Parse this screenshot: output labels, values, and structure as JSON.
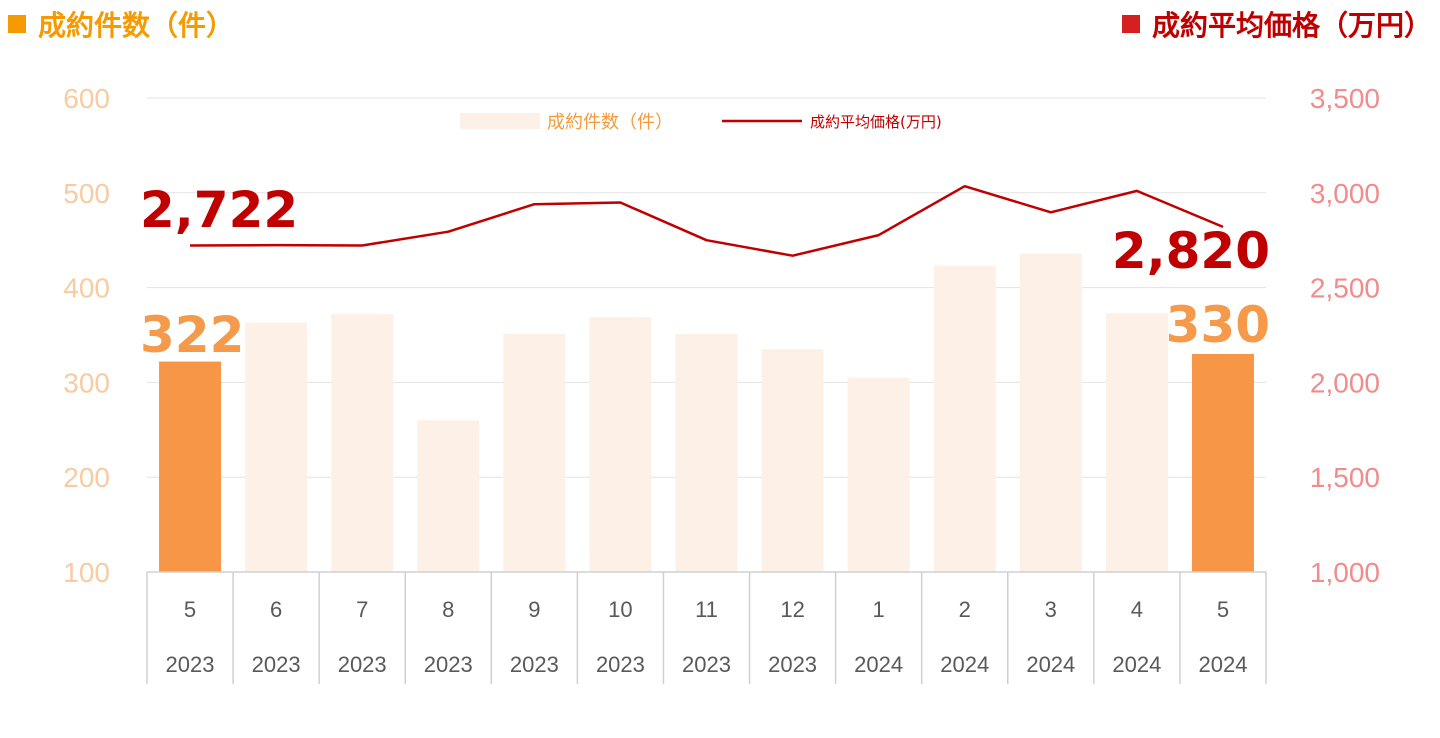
{
  "header": {
    "left_title": "成約件数（件）",
    "right_title": "成約平均価格（万円）",
    "left_color": "#F59A00",
    "right_color": "#D62020"
  },
  "chart_data": {
    "type": "bar+line",
    "categories": [
      {
        "month": "5",
        "year": "2023"
      },
      {
        "month": "6",
        "year": "2023"
      },
      {
        "month": "7",
        "year": "2023"
      },
      {
        "month": "8",
        "year": "2023"
      },
      {
        "month": "9",
        "year": "2023"
      },
      {
        "month": "10",
        "year": "2023"
      },
      {
        "month": "11",
        "year": "2023"
      },
      {
        "month": "12",
        "year": "2023"
      },
      {
        "month": "1",
        "year": "2024"
      },
      {
        "month": "2",
        "year": "2024"
      },
      {
        "month": "3",
        "year": "2024"
      },
      {
        "month": "4",
        "year": "2024"
      },
      {
        "month": "5",
        "year": "2024"
      }
    ],
    "series": [
      {
        "name": "成約件数(件)",
        "axis": "left",
        "kind": "bar",
        "values": [
          322,
          363,
          372,
          260,
          351,
          369,
          351,
          335,
          305,
          423,
          436,
          373,
          330
        ],
        "highlighted_indices": [
          0,
          12
        ],
        "color": "#F79646",
        "faded_color": "#FCF0E7"
      },
      {
        "name": "成約平均価格(万円)",
        "axis": "right",
        "kind": "line",
        "values": [
          2722,
          2724,
          2722,
          2795,
          2940,
          2949,
          2750,
          2668,
          2777,
          3035,
          2897,
          3010,
          2820
        ],
        "color": "#C00000"
      }
    ],
    "left_axis": {
      "ylim": [
        100,
        600
      ],
      "ticks": [
        "100",
        "200",
        "300",
        "400",
        "500",
        "600"
      ]
    },
    "right_axis": {
      "ylim": [
        1000,
        3500
      ],
      "ticks": [
        "1,000",
        "1,500",
        "2,000",
        "2,500",
        "3,000",
        "3,500"
      ]
    },
    "annotations": {
      "price_first": "2,722",
      "price_last": "2,820",
      "count_first": "322",
      "count_last": "330"
    },
    "legend": {
      "bar_label": "成約件数（件）",
      "line_label": "成約平均価格(万円)",
      "placement": "top-center"
    },
    "grid": true
  }
}
